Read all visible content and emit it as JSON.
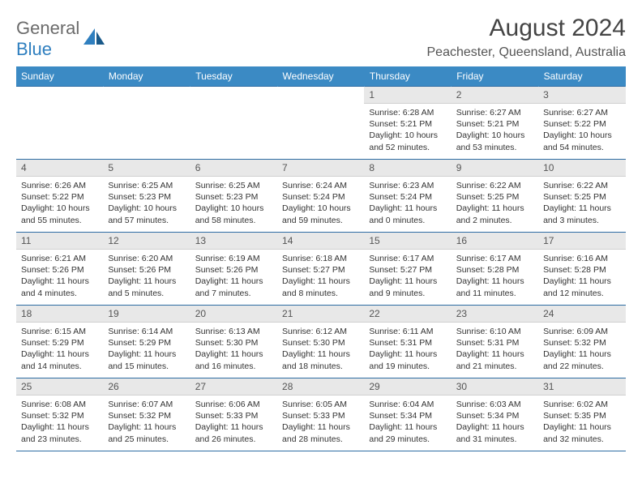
{
  "logo": {
    "part1": "General",
    "part2": "Blue"
  },
  "title": "August 2024",
  "location": "Peachester, Queensland, Australia",
  "colors": {
    "header_bg": "#3b8ac4",
    "header_text": "#ffffff",
    "row_divider": "#2d6ca3",
    "daynum_bg": "#e8e8e8",
    "logo_gray": "#6b6b6b",
    "logo_blue": "#2f7fbf"
  },
  "weekdays": [
    "Sunday",
    "Monday",
    "Tuesday",
    "Wednesday",
    "Thursday",
    "Friday",
    "Saturday"
  ],
  "first_weekday": 4,
  "days": [
    {
      "n": 1,
      "sunrise": "6:28 AM",
      "sunset": "5:21 PM",
      "daylight": "10 hours and 52 minutes."
    },
    {
      "n": 2,
      "sunrise": "6:27 AM",
      "sunset": "5:21 PM",
      "daylight": "10 hours and 53 minutes."
    },
    {
      "n": 3,
      "sunrise": "6:27 AM",
      "sunset": "5:22 PM",
      "daylight": "10 hours and 54 minutes."
    },
    {
      "n": 4,
      "sunrise": "6:26 AM",
      "sunset": "5:22 PM",
      "daylight": "10 hours and 55 minutes."
    },
    {
      "n": 5,
      "sunrise": "6:25 AM",
      "sunset": "5:23 PM",
      "daylight": "10 hours and 57 minutes."
    },
    {
      "n": 6,
      "sunrise": "6:25 AM",
      "sunset": "5:23 PM",
      "daylight": "10 hours and 58 minutes."
    },
    {
      "n": 7,
      "sunrise": "6:24 AM",
      "sunset": "5:24 PM",
      "daylight": "10 hours and 59 minutes."
    },
    {
      "n": 8,
      "sunrise": "6:23 AM",
      "sunset": "5:24 PM",
      "daylight": "11 hours and 0 minutes."
    },
    {
      "n": 9,
      "sunrise": "6:22 AM",
      "sunset": "5:25 PM",
      "daylight": "11 hours and 2 minutes."
    },
    {
      "n": 10,
      "sunrise": "6:22 AM",
      "sunset": "5:25 PM",
      "daylight": "11 hours and 3 minutes."
    },
    {
      "n": 11,
      "sunrise": "6:21 AM",
      "sunset": "5:26 PM",
      "daylight": "11 hours and 4 minutes."
    },
    {
      "n": 12,
      "sunrise": "6:20 AM",
      "sunset": "5:26 PM",
      "daylight": "11 hours and 5 minutes."
    },
    {
      "n": 13,
      "sunrise": "6:19 AM",
      "sunset": "5:26 PM",
      "daylight": "11 hours and 7 minutes."
    },
    {
      "n": 14,
      "sunrise": "6:18 AM",
      "sunset": "5:27 PM",
      "daylight": "11 hours and 8 minutes."
    },
    {
      "n": 15,
      "sunrise": "6:17 AM",
      "sunset": "5:27 PM",
      "daylight": "11 hours and 9 minutes."
    },
    {
      "n": 16,
      "sunrise": "6:17 AM",
      "sunset": "5:28 PM",
      "daylight": "11 hours and 11 minutes."
    },
    {
      "n": 17,
      "sunrise": "6:16 AM",
      "sunset": "5:28 PM",
      "daylight": "11 hours and 12 minutes."
    },
    {
      "n": 18,
      "sunrise": "6:15 AM",
      "sunset": "5:29 PM",
      "daylight": "11 hours and 14 minutes."
    },
    {
      "n": 19,
      "sunrise": "6:14 AM",
      "sunset": "5:29 PM",
      "daylight": "11 hours and 15 minutes."
    },
    {
      "n": 20,
      "sunrise": "6:13 AM",
      "sunset": "5:30 PM",
      "daylight": "11 hours and 16 minutes."
    },
    {
      "n": 21,
      "sunrise": "6:12 AM",
      "sunset": "5:30 PM",
      "daylight": "11 hours and 18 minutes."
    },
    {
      "n": 22,
      "sunrise": "6:11 AM",
      "sunset": "5:31 PM",
      "daylight": "11 hours and 19 minutes."
    },
    {
      "n": 23,
      "sunrise": "6:10 AM",
      "sunset": "5:31 PM",
      "daylight": "11 hours and 21 minutes."
    },
    {
      "n": 24,
      "sunrise": "6:09 AM",
      "sunset": "5:32 PM",
      "daylight": "11 hours and 22 minutes."
    },
    {
      "n": 25,
      "sunrise": "6:08 AM",
      "sunset": "5:32 PM",
      "daylight": "11 hours and 23 minutes."
    },
    {
      "n": 26,
      "sunrise": "6:07 AM",
      "sunset": "5:32 PM",
      "daylight": "11 hours and 25 minutes."
    },
    {
      "n": 27,
      "sunrise": "6:06 AM",
      "sunset": "5:33 PM",
      "daylight": "11 hours and 26 minutes."
    },
    {
      "n": 28,
      "sunrise": "6:05 AM",
      "sunset": "5:33 PM",
      "daylight": "11 hours and 28 minutes."
    },
    {
      "n": 29,
      "sunrise": "6:04 AM",
      "sunset": "5:34 PM",
      "daylight": "11 hours and 29 minutes."
    },
    {
      "n": 30,
      "sunrise": "6:03 AM",
      "sunset": "5:34 PM",
      "daylight": "11 hours and 31 minutes."
    },
    {
      "n": 31,
      "sunrise": "6:02 AM",
      "sunset": "5:35 PM",
      "daylight": "11 hours and 32 minutes."
    }
  ],
  "labels": {
    "sunrise": "Sunrise:",
    "sunset": "Sunset:",
    "daylight": "Daylight:"
  }
}
